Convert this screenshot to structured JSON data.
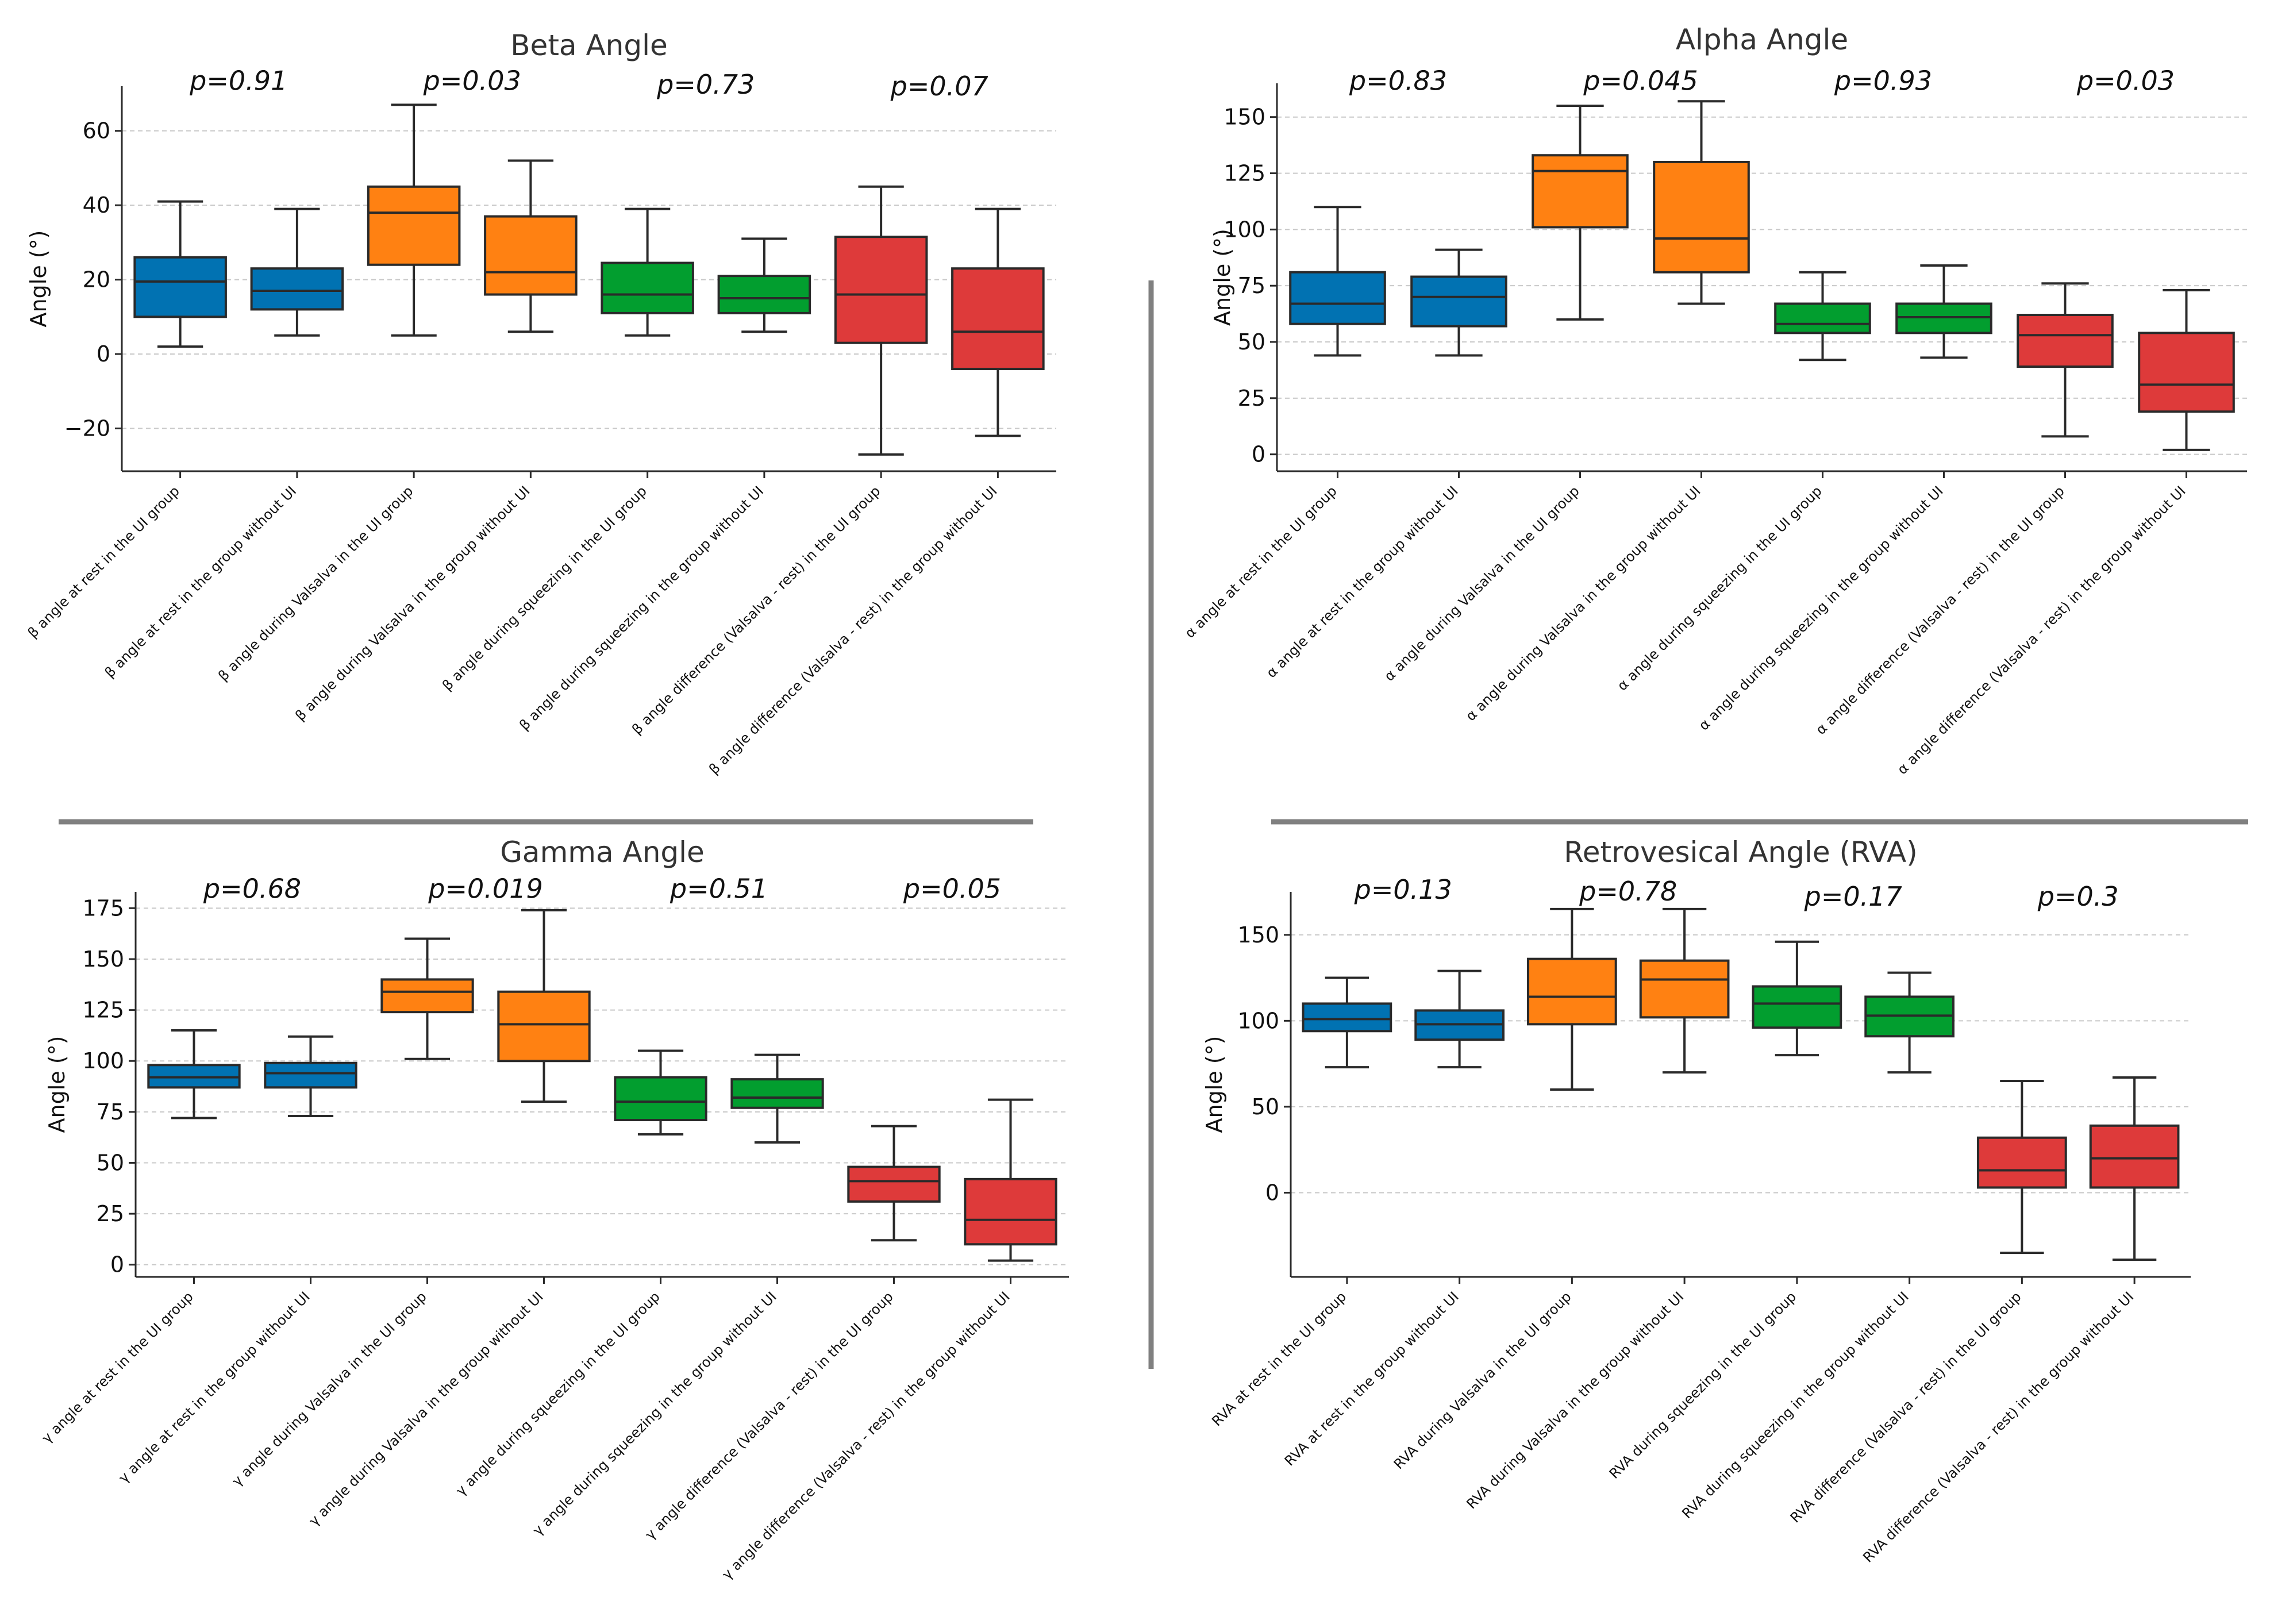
{
  "colors": {
    "blue": "#0172B2",
    "orange": "#FF8112",
    "green": "#029E2F",
    "red": "#DE3A3A",
    "edge": "#2a2a2a",
    "grid": "#c8c8c8",
    "divider": "#808080"
  },
  "chart_data": [
    {
      "id": "beta",
      "type": "box",
      "title": "Beta Angle",
      "ylabel": "Angle (°)",
      "ylim": [
        -31.5,
        72
      ],
      "yticks": [
        -20,
        0,
        20,
        40,
        60
      ],
      "ytick_labels": [
        "−20",
        "0",
        "20",
        "40",
        "60"
      ],
      "grid": true,
      "categories": [
        "β angle at rest in the UI group",
        "β angle at rest in the group without UI",
        "β angle during Valsalva in the UI group",
        "β angle during Valsalva in the group without UI",
        "β angle during squeezing in the UI group",
        "β angle during squeezing in the group without UI",
        "β angle difference (Valsalva - rest) in the UI group",
        "β angle difference (Valsalva - rest) in the group without UI"
      ],
      "box_colors": [
        "blue",
        "blue",
        "orange",
        "orange",
        "green",
        "green",
        "red",
        "red"
      ],
      "boxes": [
        {
          "min": 2,
          "q1": 10,
          "median": 19.5,
          "q3": 26,
          "max": 41
        },
        {
          "min": 5,
          "q1": 12,
          "median": 17,
          "q3": 23,
          "max": 39
        },
        {
          "min": 5,
          "q1": 24,
          "median": 38,
          "q3": 45,
          "max": 67
        },
        {
          "min": 6,
          "q1": 16,
          "median": 22,
          "q3": 37,
          "max": 52
        },
        {
          "min": 5,
          "q1": 11,
          "median": 16,
          "q3": 24.5,
          "max": 39
        },
        {
          "min": 6,
          "q1": 11,
          "median": 15,
          "q3": 21,
          "max": 31
        },
        {
          "min": -27,
          "q1": 3,
          "median": 16,
          "q3": 31.5,
          "max": 45
        },
        {
          "min": -22,
          "q1": -4,
          "median": 6,
          "q3": 23,
          "max": 39
        }
      ],
      "annotations": [
        {
          "text": "p=0.91",
          "x": 0.5,
          "y": 71
        },
        {
          "text": "p=0.03",
          "x": 2.5,
          "y": 71
        },
        {
          "text": "p=0.73",
          "x": 4.5,
          "y": 70
        },
        {
          "text": "p=0.07",
          "x": 6.5,
          "y": 69.5
        }
      ]
    },
    {
      "id": "alpha",
      "type": "box",
      "title": "Alpha Angle",
      "ylabel": "Angle (°)",
      "ylim": [
        -7.5,
        165
      ],
      "yticks": [
        0,
        25,
        50,
        75,
        100,
        125,
        150
      ],
      "ytick_labels": [
        "0",
        "25",
        "50",
        "75",
        "100",
        "125",
        "150"
      ],
      "grid": true,
      "categories": [
        "α angle at rest in the UI group",
        "α angle at rest in the group without UI",
        "α angle during Valsalva in the UI group",
        "α angle during Valsalva in the group without UI",
        "α angle during squeezing in the UI group",
        "α angle during squeezing in the group without UI",
        "α angle difference (Valsalva - rest) in the UI group",
        "α angle difference (Valsalva - rest) in the group without UI"
      ],
      "box_colors": [
        "blue",
        "blue",
        "orange",
        "orange",
        "green",
        "green",
        "red",
        "red"
      ],
      "boxes": [
        {
          "min": 44,
          "q1": 58,
          "median": 67,
          "q3": 81,
          "max": 110
        },
        {
          "min": 44,
          "q1": 57,
          "median": 70,
          "q3": 79,
          "max": 91
        },
        {
          "min": 60,
          "q1": 101,
          "median": 126,
          "q3": 133,
          "max": 155
        },
        {
          "min": 67,
          "q1": 81,
          "median": 96,
          "q3": 130,
          "max": 157
        },
        {
          "min": 42,
          "q1": 54,
          "median": 58,
          "q3": 67,
          "max": 81
        },
        {
          "min": 43,
          "q1": 54,
          "median": 61,
          "q3": 67,
          "max": 84
        },
        {
          "min": 8,
          "q1": 39,
          "median": 53,
          "q3": 62,
          "max": 76
        },
        {
          "min": 2,
          "q1": 19,
          "median": 31,
          "q3": 54,
          "max": 73
        }
      ],
      "annotations": [
        {
          "text": "p=0.83",
          "x": 0.5,
          "y": 162
        },
        {
          "text": "p=0.045",
          "x": 2.5,
          "y": 162
        },
        {
          "text": "p=0.93",
          "x": 4.5,
          "y": 162
        },
        {
          "text": "p=0.03",
          "x": 6.5,
          "y": 162
        }
      ]
    },
    {
      "id": "gamma",
      "type": "box",
      "title": "Gamma Angle",
      "ylabel": "Angle (°)",
      "ylim": [
        -6,
        183
      ],
      "yticks": [
        0,
        25,
        50,
        75,
        100,
        125,
        150,
        175
      ],
      "ytick_labels": [
        "0",
        "25",
        "50",
        "75",
        "100",
        "125",
        "150",
        "175"
      ],
      "grid": true,
      "categories": [
        "γ angle at rest in the UI group",
        "γ angle at rest in the group without UI",
        "γ angle during Valsalva in the UI group",
        "γ angle during Valsalva in the group without UI",
        "γ angle during squeezing in the UI group",
        "γ angle during squeezing in the group without UI",
        "γ angle difference (Valsalva - rest) in the UI group",
        "γ angle difference (Valsalva - rest) in the group without UI"
      ],
      "box_colors": [
        "blue",
        "blue",
        "orange",
        "orange",
        "green",
        "green",
        "red",
        "red"
      ],
      "boxes": [
        {
          "min": 72,
          "q1": 87,
          "median": 92,
          "q3": 98,
          "max": 115
        },
        {
          "min": 73,
          "q1": 87,
          "median": 94,
          "q3": 99,
          "max": 112
        },
        {
          "min": 101,
          "q1": 124,
          "median": 134,
          "q3": 140,
          "max": 160
        },
        {
          "min": 80,
          "q1": 100,
          "median": 118,
          "q3": 134,
          "max": 174
        },
        {
          "min": 64,
          "q1": 71,
          "median": 80,
          "q3": 92,
          "max": 105
        },
        {
          "min": 60,
          "q1": 77,
          "median": 82,
          "q3": 91,
          "max": 103
        },
        {
          "min": 12,
          "q1": 31,
          "median": 41,
          "q3": 48,
          "max": 68
        },
        {
          "min": 2,
          "q1": 10,
          "median": 22,
          "q3": 42,
          "max": 81
        }
      ],
      "annotations": [
        {
          "text": "p=0.68",
          "x": 0.5,
          "y": 180
        },
        {
          "text": "p=0.019",
          "x": 2.5,
          "y": 180
        },
        {
          "text": "p=0.51",
          "x": 4.5,
          "y": 180
        },
        {
          "text": "p=0.05",
          "x": 6.5,
          "y": 180
        }
      ]
    },
    {
      "id": "rva",
      "type": "box",
      "title": "Retrovesical Angle (RVA)",
      "ylabel": "Angle (°)",
      "ylim": [
        -49,
        175
      ],
      "yticks": [
        0,
        50,
        100,
        150
      ],
      "ytick_labels": [
        "0",
        "50",
        "100",
        "150"
      ],
      "grid": true,
      "categories": [
        "RVA at rest in the UI group",
        "RVA at rest in the group without UI",
        "RVA during Valsalva in the UI group",
        "RVA during Valsalva in the group without UI",
        "RVA during squeezing in the UI group",
        "RVA during squeezing in the group without UI",
        "RVA difference (Valsalva - rest) in the UI group",
        "RVA difference (Valsalva - rest) in the group without UI"
      ],
      "box_colors": [
        "blue",
        "blue",
        "orange",
        "orange",
        "green",
        "green",
        "red",
        "red"
      ],
      "boxes": [
        {
          "min": 73,
          "q1": 94,
          "median": 101,
          "q3": 110,
          "max": 125
        },
        {
          "min": 73,
          "q1": 89,
          "median": 98,
          "q3": 106,
          "max": 129
        },
        {
          "min": 60,
          "q1": 98,
          "median": 114,
          "q3": 136,
          "max": 165
        },
        {
          "min": 70,
          "q1": 102,
          "median": 124,
          "q3": 135,
          "max": 165
        },
        {
          "min": 80,
          "q1": 96,
          "median": 110,
          "q3": 120,
          "max": 146
        },
        {
          "min": 70,
          "q1": 91,
          "median": 103,
          "q3": 114,
          "max": 128
        },
        {
          "min": -35,
          "q1": 3,
          "median": 13,
          "q3": 32,
          "max": 65
        },
        {
          "min": -39,
          "q1": 3,
          "median": 20,
          "q3": 39,
          "max": 67
        }
      ],
      "annotations": [
        {
          "text": "p=0.13",
          "x": 0.5,
          "y": 171
        },
        {
          "text": "p=0.78",
          "x": 2.5,
          "y": 170
        },
        {
          "text": "p=0.17",
          "x": 4.5,
          "y": 167
        },
        {
          "text": "p=0.3",
          "x": 6.5,
          "y": 167
        }
      ]
    }
  ]
}
